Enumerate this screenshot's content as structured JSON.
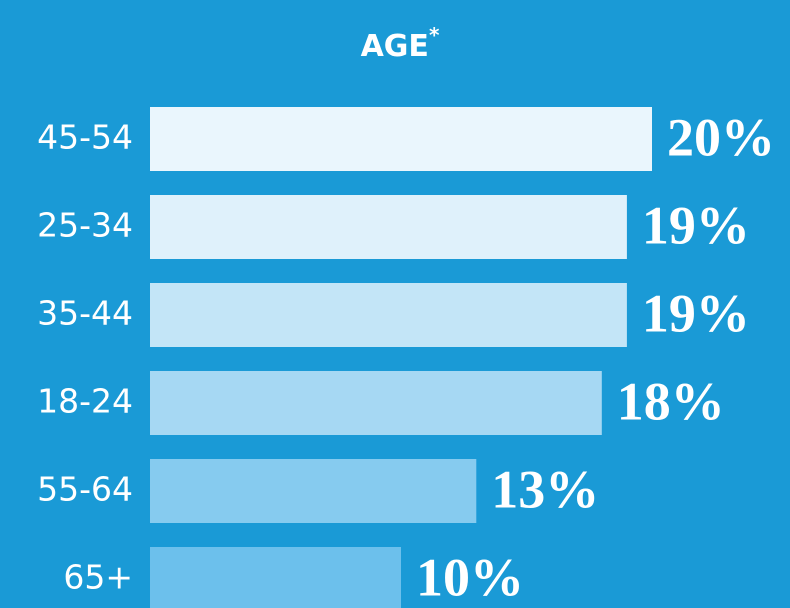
{
  "chart_data": {
    "type": "bar",
    "orientation": "horizontal",
    "title": "AGE",
    "title_marker": "*",
    "categories": [
      "45-54",
      "25-34",
      "35-44",
      "18-24",
      "55-64",
      "65+"
    ],
    "values": [
      20,
      19,
      19,
      18,
      13,
      10
    ],
    "value_labels": [
      "20%",
      "19%",
      "19%",
      "18%",
      "13%",
      "10%"
    ],
    "colors": [
      "#eaf6fd",
      "#dff1fb",
      "#c3e5f7",
      "#a6d8f3",
      "#86cbef",
      "#6cc0ec"
    ]
  }
}
